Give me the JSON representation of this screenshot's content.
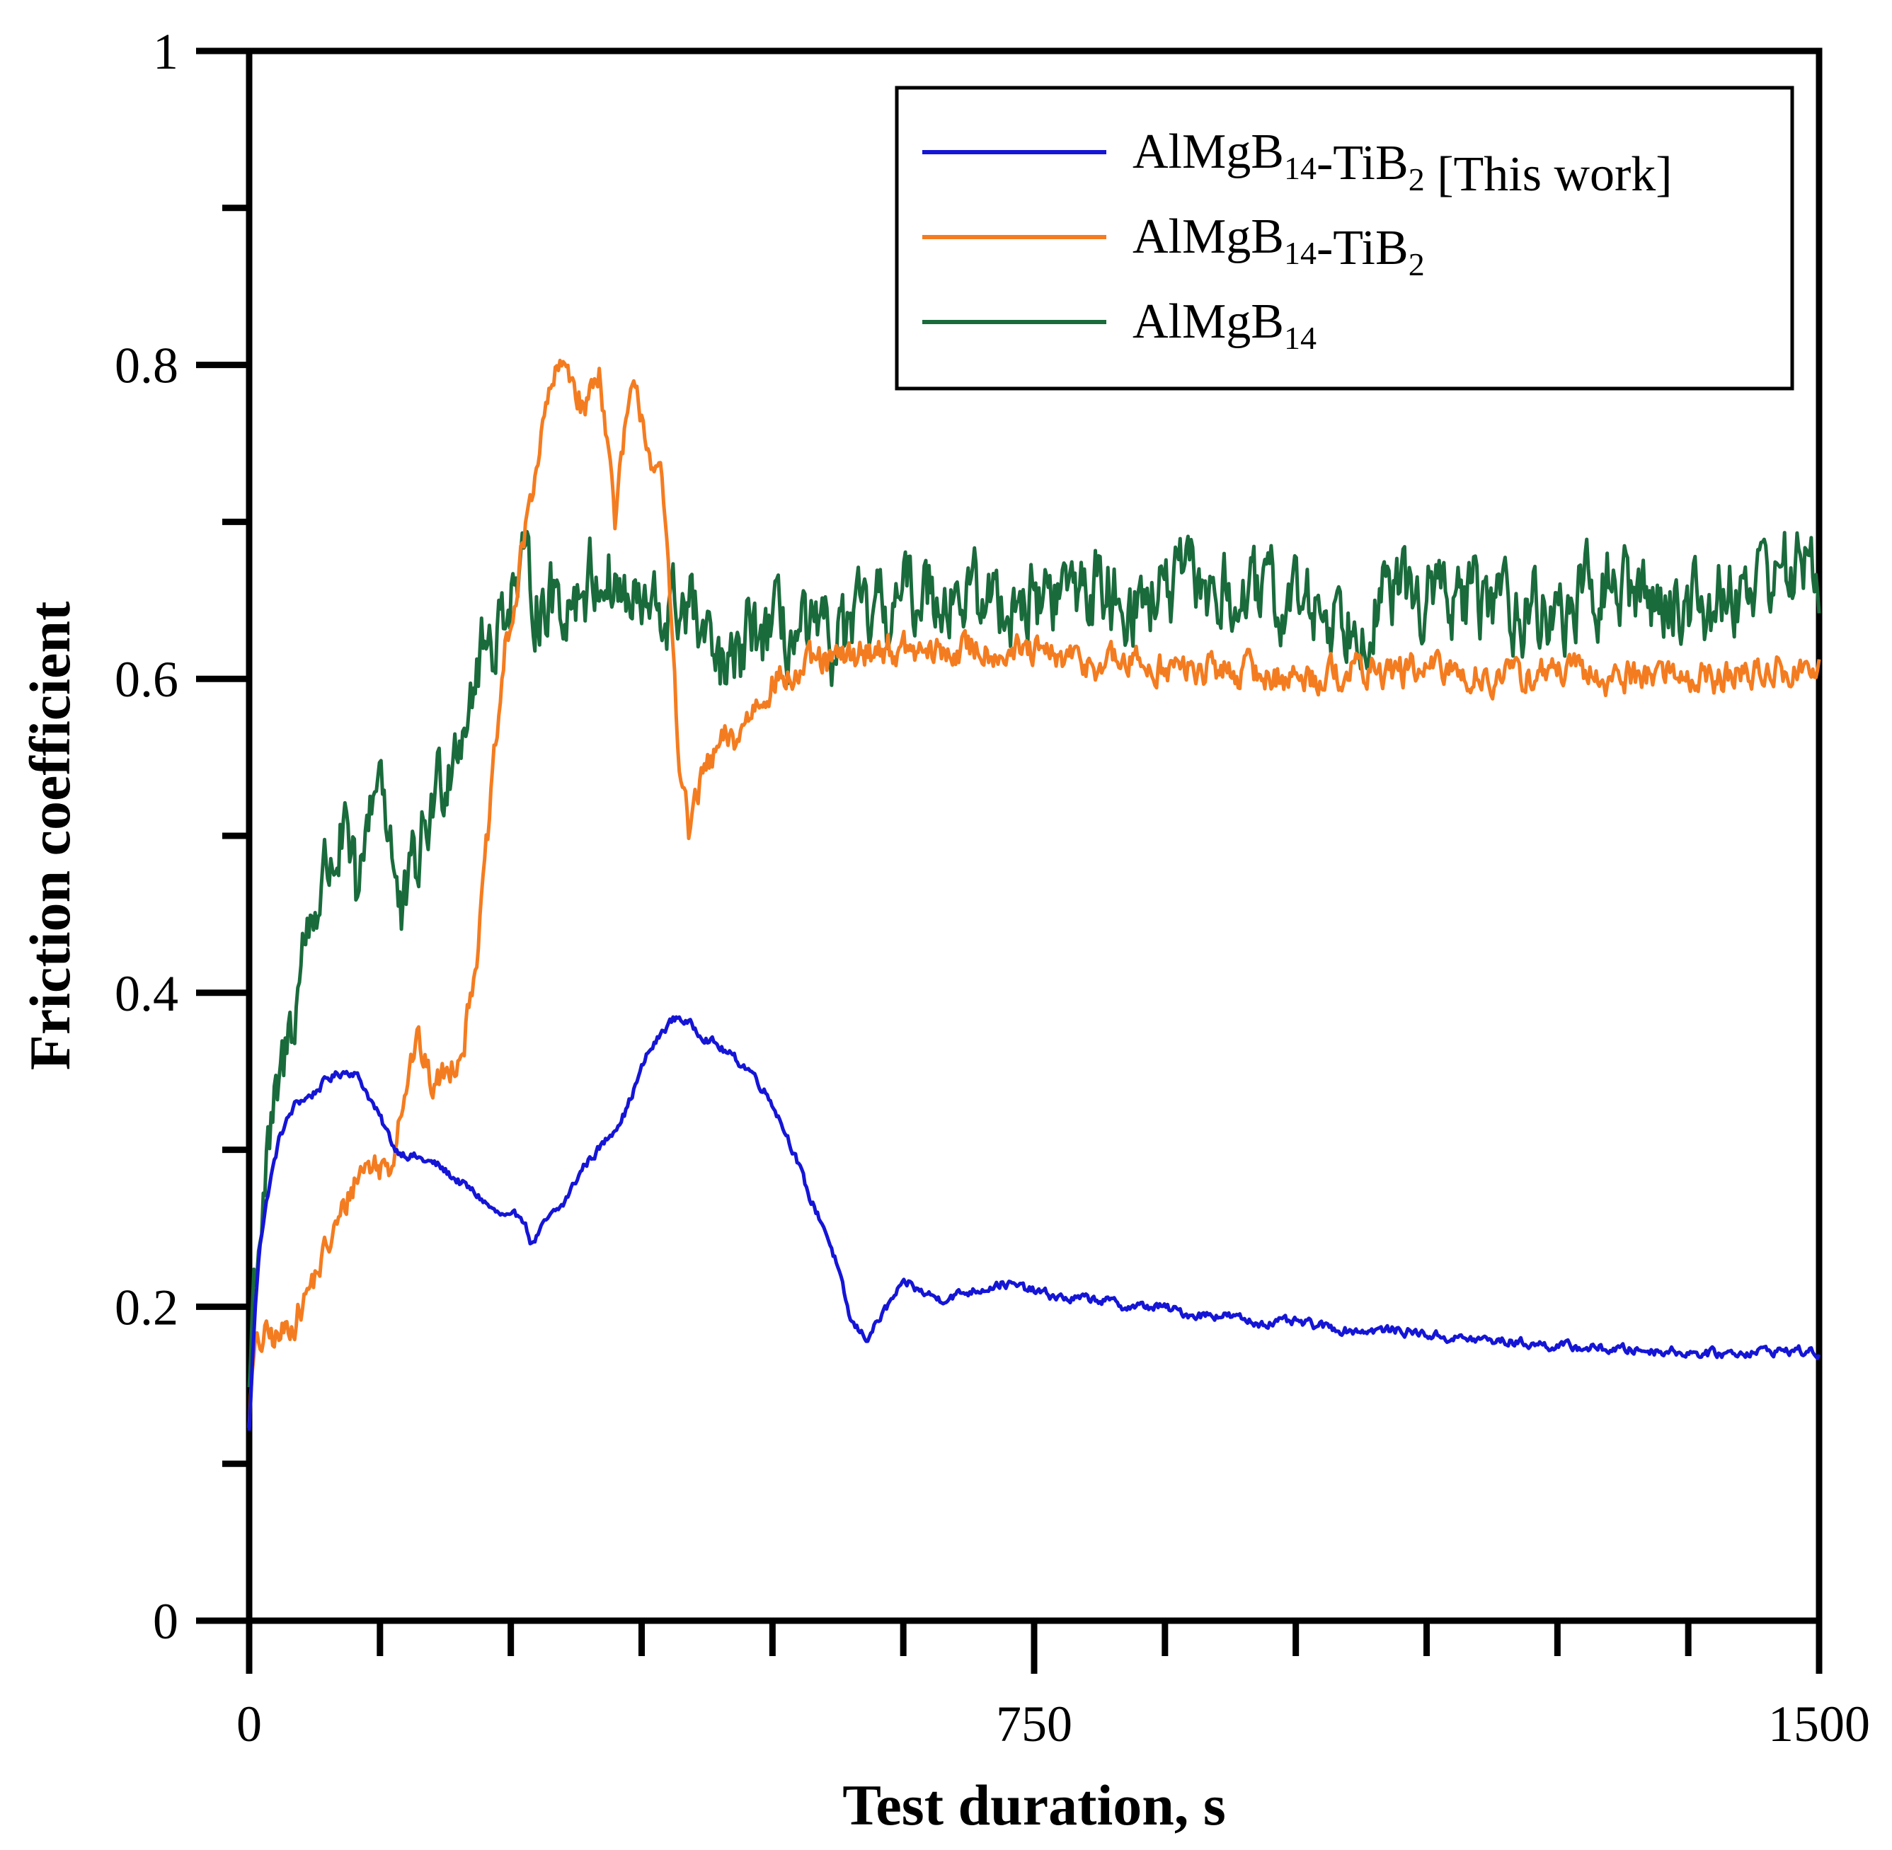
{
  "chart_data": {
    "type": "line",
    "title": "",
    "xlabel": "Test duration, s",
    "ylabel": "Friction coefficient",
    "xlim": [
      0,
      1500
    ],
    "ylim": [
      0,
      1
    ],
    "x_ticks": [
      0,
      750,
      1500
    ],
    "x_tick_labels": [
      "0",
      "750",
      "1500"
    ],
    "x_minor_ticks": [
      125,
      250,
      375,
      500,
      625,
      875,
      1000,
      1125,
      1250,
      1375
    ],
    "y_ticks": [
      0,
      0.2,
      0.4,
      0.6,
      0.8,
      1
    ],
    "y_tick_labels": [
      "0",
      "0.2",
      "0.4",
      "0.6",
      "0.8",
      "1"
    ],
    "y_minor_ticks": [
      0.1,
      0.3,
      0.5,
      0.7,
      0.9
    ],
    "grid": false,
    "legend_position": "top-right",
    "series": [
      {
        "name": "AlMgB14-TiB2 [This work]",
        "legend_main": "AlMgB",
        "legend_sub1": "14",
        "legend_mid": "-TiB",
        "legend_sub2": "2",
        "legend_tail": " [This work]",
        "color": "#1515d6",
        "noise": 0.0025,
        "x": [
          0,
          5,
          10,
          20,
          30,
          45,
          60,
          75,
          90,
          100,
          110,
          125,
          140,
          160,
          180,
          200,
          220,
          235,
          250,
          260,
          265,
          270,
          285,
          300,
          320,
          340,
          360,
          380,
          400,
          410,
          420,
          430,
          440,
          460,
          480,
          500,
          520,
          535,
          550,
          560,
          575,
          590,
          610,
          620,
          630,
          640,
          660,
          690,
          720,
          750,
          780,
          810,
          840,
          870,
          900,
          930,
          960,
          1000,
          1050,
          1100,
          1150,
          1200,
          1250,
          1300,
          1350,
          1400,
          1450,
          1480,
          1500
        ],
        "y": [
          0.12,
          0.19,
          0.24,
          0.28,
          0.31,
          0.33,
          0.335,
          0.345,
          0.35,
          0.35,
          0.34,
          0.32,
          0.3,
          0.295,
          0.29,
          0.28,
          0.27,
          0.26,
          0.255,
          0.26,
          0.25,
          0.24,
          0.255,
          0.265,
          0.29,
          0.305,
          0.325,
          0.36,
          0.38,
          0.385,
          0.38,
          0.375,
          0.37,
          0.36,
          0.35,
          0.33,
          0.3,
          0.27,
          0.25,
          0.23,
          0.19,
          0.18,
          0.2,
          0.21,
          0.215,
          0.21,
          0.205,
          0.21,
          0.215,
          0.21,
          0.205,
          0.205,
          0.2,
          0.2,
          0.195,
          0.195,
          0.19,
          0.19,
          0.185,
          0.185,
          0.18,
          0.178,
          0.175,
          0.173,
          0.172,
          0.17,
          0.172,
          0.172,
          0.17
        ]
      },
      {
        "name": "AlMgB14-TiB2",
        "legend_main": "AlMgB",
        "legend_sub1": "14",
        "legend_mid": "-TiB",
        "legend_sub2": "2",
        "legend_tail": "",
        "color": "#f47c20",
        "noise": 0.009,
        "x": [
          0,
          5,
          15,
          30,
          50,
          70,
          90,
          100,
          110,
          125,
          135,
          145,
          160,
          175,
          190,
          205,
          220,
          235,
          245,
          255,
          265,
          275,
          290,
          305,
          320,
          335,
          350,
          360,
          365,
          375,
          385,
          395,
          405,
          410,
          420,
          425,
          435,
          445,
          455,
          465,
          480,
          500,
          520,
          540,
          560,
          580,
          600,
          650,
          700,
          750,
          800,
          850,
          900,
          950,
          1000,
          1050,
          1100,
          1150,
          1200,
          1250,
          1300,
          1350,
          1400,
          1450,
          1500
        ],
        "y": [
          0.13,
          0.17,
          0.18,
          0.18,
          0.2,
          0.23,
          0.26,
          0.28,
          0.29,
          0.29,
          0.29,
          0.33,
          0.37,
          0.34,
          0.35,
          0.37,
          0.44,
          0.55,
          0.62,
          0.65,
          0.7,
          0.74,
          0.79,
          0.8,
          0.77,
          0.8,
          0.7,
          0.76,
          0.78,
          0.77,
          0.74,
          0.72,
          0.62,
          0.56,
          0.5,
          0.52,
          0.54,
          0.55,
          0.56,
          0.56,
          0.58,
          0.6,
          0.6,
          0.61,
          0.61,
          0.615,
          0.62,
          0.615,
          0.62,
          0.615,
          0.61,
          0.61,
          0.605,
          0.605,
          0.6,
          0.605,
          0.605,
          0.605,
          0.6,
          0.605,
          0.6,
          0.605,
          0.6,
          0.605,
          0.605
        ]
      },
      {
        "name": "AlMgB14",
        "legend_main": "AlMgB",
        "legend_sub1": "14",
        "legend_mid": "",
        "legend_sub2": "",
        "legend_tail": "",
        "color": "#1a6b3c",
        "noise": 0.022,
        "x": [
          0,
          5,
          15,
          25,
          40,
          55,
          65,
          75,
          90,
          105,
          115,
          125,
          135,
          145,
          160,
          175,
          190,
          205,
          220,
          235,
          250,
          265,
          280,
          300,
          320,
          340,
          360,
          380,
          400,
          420,
          440,
          460,
          480,
          500,
          550,
          600,
          650,
          700,
          750,
          800,
          850,
          900,
          950,
          1000,
          1050,
          1100,
          1150,
          1200,
          1250,
          1300,
          1350,
          1400,
          1450,
          1500
        ],
        "y": [
          0.15,
          0.22,
          0.28,
          0.32,
          0.38,
          0.44,
          0.46,
          0.48,
          0.5,
          0.45,
          0.52,
          0.55,
          0.5,
          0.44,
          0.48,
          0.52,
          0.55,
          0.58,
          0.61,
          0.63,
          0.66,
          0.66,
          0.65,
          0.65,
          0.66,
          0.67,
          0.65,
          0.64,
          0.64,
          0.65,
          0.61,
          0.6,
          0.63,
          0.63,
          0.62,
          0.64,
          0.66,
          0.65,
          0.65,
          0.66,
          0.65,
          0.66,
          0.65,
          0.65,
          0.64,
          0.655,
          0.65,
          0.65,
          0.64,
          0.66,
          0.65,
          0.65,
          0.67,
          0.67
        ]
      }
    ]
  }
}
